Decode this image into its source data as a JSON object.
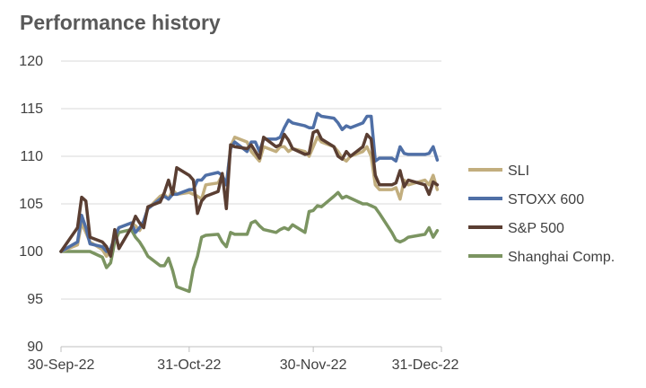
{
  "chart_data": {
    "type": "line",
    "title": "Performance history",
    "xlabel": "",
    "ylabel": "",
    "ylim": [
      90,
      120
    ],
    "yticks": [
      90,
      95,
      100,
      105,
      110,
      115,
      120
    ],
    "xlim": [
      "2022-09-30",
      "2022-12-31"
    ],
    "xticks": [
      "30-Sep-22",
      "31-Oct-22",
      "30-Nov-22",
      "31-Dec-22"
    ],
    "grid": "horizontal",
    "legend_position": "right",
    "series": [
      {
        "name": "SLI",
        "color": "#c2ae7e",
        "points": [
          [
            "2022-09-30",
            100.0
          ],
          [
            "2022-10-04",
            100.7
          ],
          [
            "2022-10-05",
            103.0
          ],
          [
            "2022-10-06",
            102.0
          ],
          [
            "2022-10-07",
            101.0
          ],
          [
            "2022-10-10",
            100.2
          ],
          [
            "2022-10-11",
            99.5
          ],
          [
            "2022-10-12",
            100.2
          ],
          [
            "2022-10-13",
            101.5
          ],
          [
            "2022-10-14",
            102.5
          ],
          [
            "2022-10-17",
            103.0
          ],
          [
            "2022-10-18",
            102.7
          ],
          [
            "2022-10-19",
            102.2
          ],
          [
            "2022-10-20",
            103.0
          ],
          [
            "2022-10-21",
            104.5
          ],
          [
            "2022-10-24",
            105.8
          ],
          [
            "2022-10-25",
            106.0
          ],
          [
            "2022-10-26",
            105.5
          ],
          [
            "2022-10-27",
            106.5
          ],
          [
            "2022-10-28",
            106.0
          ],
          [
            "2022-10-31",
            106.2
          ],
          [
            "2022-11-01",
            106.0
          ],
          [
            "2022-11-02",
            105.8
          ],
          [
            "2022-11-03",
            105.5
          ],
          [
            "2022-11-04",
            107.0
          ],
          [
            "2022-11-07",
            107.2
          ],
          [
            "2022-11-08",
            108.0
          ],
          [
            "2022-11-09",
            107.0
          ],
          [
            "2022-11-10",
            111.0
          ],
          [
            "2022-11-11",
            112.0
          ],
          [
            "2022-11-14",
            111.5
          ],
          [
            "2022-11-15",
            110.5
          ],
          [
            "2022-11-16",
            110.0
          ],
          [
            "2022-11-17",
            109.5
          ],
          [
            "2022-11-18",
            111.0
          ],
          [
            "2022-11-21",
            110.5
          ],
          [
            "2022-11-22",
            111.0
          ],
          [
            "2022-11-23",
            111.0
          ],
          [
            "2022-11-24",
            110.5
          ],
          [
            "2022-11-25",
            110.8
          ],
          [
            "2022-11-28",
            110.5
          ],
          [
            "2022-11-29",
            110.0
          ],
          [
            "2022-11-30",
            111.0
          ],
          [
            "2022-12-01",
            112.0
          ],
          [
            "2022-12-02",
            111.5
          ],
          [
            "2022-12-05",
            111.0
          ],
          [
            "2022-12-06",
            110.5
          ],
          [
            "2022-12-07",
            109.8
          ],
          [
            "2022-12-08",
            109.5
          ],
          [
            "2022-12-09",
            110.0
          ],
          [
            "2022-12-12",
            110.5
          ],
          [
            "2022-12-13",
            111.0
          ],
          [
            "2022-12-14",
            110.0
          ],
          [
            "2022-12-15",
            107.0
          ],
          [
            "2022-12-16",
            106.5
          ],
          [
            "2022-12-19",
            106.5
          ],
          [
            "2022-12-20",
            106.7
          ],
          [
            "2022-12-21",
            105.5
          ],
          [
            "2022-12-22",
            107.5
          ],
          [
            "2022-12-23",
            107.0
          ],
          [
            "2022-12-27",
            107.5
          ],
          [
            "2022-12-28",
            107.0
          ],
          [
            "2022-12-29",
            108.0
          ],
          [
            "2022-12-30",
            106.5
          ]
        ]
      },
      {
        "name": "STOXX 600",
        "color": "#4f6fa6",
        "points": [
          [
            "2022-09-30",
            100.0
          ],
          [
            "2022-10-04",
            101.0
          ],
          [
            "2022-10-05",
            103.8
          ],
          [
            "2022-10-06",
            102.5
          ],
          [
            "2022-10-07",
            100.8
          ],
          [
            "2022-10-10",
            100.5
          ],
          [
            "2022-10-11",
            100.0
          ],
          [
            "2022-10-12",
            100.3
          ],
          [
            "2022-10-13",
            101.5
          ],
          [
            "2022-10-14",
            102.5
          ],
          [
            "2022-10-17",
            103.0
          ],
          [
            "2022-10-18",
            102.0
          ],
          [
            "2022-10-19",
            102.5
          ],
          [
            "2022-10-20",
            103.2
          ],
          [
            "2022-10-21",
            104.5
          ],
          [
            "2022-10-24",
            105.5
          ],
          [
            "2022-10-25",
            105.8
          ],
          [
            "2022-10-26",
            105.5
          ],
          [
            "2022-10-27",
            106.0
          ],
          [
            "2022-10-28",
            106.0
          ],
          [
            "2022-10-31",
            106.5
          ],
          [
            "2022-11-01",
            106.5
          ],
          [
            "2022-11-02",
            107.5
          ],
          [
            "2022-11-03",
            107.5
          ],
          [
            "2022-11-04",
            108.0
          ],
          [
            "2022-11-07",
            108.3
          ],
          [
            "2022-11-08",
            108.0
          ],
          [
            "2022-11-09",
            107.0
          ],
          [
            "2022-11-10",
            110.8
          ],
          [
            "2022-11-11",
            111.5
          ],
          [
            "2022-11-14",
            110.5
          ],
          [
            "2022-11-15",
            111.5
          ],
          [
            "2022-11-16",
            111.5
          ],
          [
            "2022-11-17",
            110.5
          ],
          [
            "2022-11-18",
            111.8
          ],
          [
            "2022-11-21",
            111.8
          ],
          [
            "2022-11-22",
            112.0
          ],
          [
            "2022-11-23",
            113.0
          ],
          [
            "2022-11-24",
            113.8
          ],
          [
            "2022-11-25",
            113.5
          ],
          [
            "2022-11-28",
            113.2
          ],
          [
            "2022-11-29",
            113.0
          ],
          [
            "2022-11-30",
            113.0
          ],
          [
            "2022-12-01",
            114.5
          ],
          [
            "2022-12-02",
            114.2
          ],
          [
            "2022-12-05",
            114.0
          ],
          [
            "2022-12-06",
            113.5
          ],
          [
            "2022-12-07",
            112.8
          ],
          [
            "2022-12-08",
            113.2
          ],
          [
            "2022-12-09",
            113.0
          ],
          [
            "2022-12-12",
            113.5
          ],
          [
            "2022-12-13",
            114.2
          ],
          [
            "2022-12-14",
            114.2
          ],
          [
            "2022-12-15",
            109.5
          ],
          [
            "2022-12-16",
            109.8
          ],
          [
            "2022-12-19",
            109.8
          ],
          [
            "2022-12-20",
            109.5
          ],
          [
            "2022-12-21",
            111.0
          ],
          [
            "2022-12-22",
            110.3
          ],
          [
            "2022-12-23",
            110.2
          ],
          [
            "2022-12-27",
            110.2
          ],
          [
            "2022-12-28",
            110.3
          ],
          [
            "2022-12-29",
            111.0
          ],
          [
            "2022-12-30",
            109.6
          ]
        ]
      },
      {
        "name": "S&P 500",
        "color": "#5a3e32",
        "points": [
          [
            "2022-09-30",
            100.0
          ],
          [
            "2022-10-04",
            102.5
          ],
          [
            "2022-10-05",
            105.7
          ],
          [
            "2022-10-06",
            105.3
          ],
          [
            "2022-10-07",
            101.5
          ],
          [
            "2022-10-10",
            101.0
          ],
          [
            "2022-10-11",
            100.5
          ],
          [
            "2022-10-12",
            99.5
          ],
          [
            "2022-10-13",
            102.3
          ],
          [
            "2022-10-14",
            100.3
          ],
          [
            "2022-10-17",
            102.5
          ],
          [
            "2022-10-18",
            103.7
          ],
          [
            "2022-10-19",
            103.0
          ],
          [
            "2022-10-20",
            102.5
          ],
          [
            "2022-10-21",
            104.7
          ],
          [
            "2022-10-24",
            105.2
          ],
          [
            "2022-10-25",
            106.2
          ],
          [
            "2022-10-26",
            107.5
          ],
          [
            "2022-10-27",
            106.0
          ],
          [
            "2022-10-28",
            108.8
          ],
          [
            "2022-10-31",
            108.0
          ],
          [
            "2022-11-01",
            107.5
          ],
          [
            "2022-11-02",
            104.0
          ],
          [
            "2022-11-03",
            105.3
          ],
          [
            "2022-11-04",
            105.8
          ],
          [
            "2022-11-07",
            106.3
          ],
          [
            "2022-11-08",
            108.2
          ],
          [
            "2022-11-09",
            104.5
          ],
          [
            "2022-11-10",
            111.2
          ],
          [
            "2022-11-11",
            111.0
          ],
          [
            "2022-11-14",
            110.8
          ],
          [
            "2022-11-15",
            111.2
          ],
          [
            "2022-11-16",
            110.5
          ],
          [
            "2022-11-17",
            109.8
          ],
          [
            "2022-11-18",
            112.0
          ],
          [
            "2022-11-21",
            111.0
          ],
          [
            "2022-11-22",
            111.2
          ],
          [
            "2022-11-23",
            112.3
          ],
          [
            "2022-11-24",
            111.7
          ],
          [
            "2022-11-25",
            110.8
          ],
          [
            "2022-11-28",
            110.2
          ],
          [
            "2022-11-29",
            110.3
          ],
          [
            "2022-11-30",
            112.5
          ],
          [
            "2022-12-01",
            112.7
          ],
          [
            "2022-12-02",
            111.8
          ],
          [
            "2022-12-05",
            111.0
          ],
          [
            "2022-12-06",
            110.0
          ],
          [
            "2022-12-07",
            109.7
          ],
          [
            "2022-12-08",
            110.5
          ],
          [
            "2022-12-09",
            110.0
          ],
          [
            "2022-12-12",
            111.0
          ],
          [
            "2022-12-13",
            112.3
          ],
          [
            "2022-12-14",
            111.8
          ],
          [
            "2022-12-15",
            108.0
          ],
          [
            "2022-12-16",
            107.0
          ],
          [
            "2022-12-19",
            107.0
          ],
          [
            "2022-12-20",
            107.2
          ],
          [
            "2022-12-21",
            108.5
          ],
          [
            "2022-12-22",
            106.8
          ],
          [
            "2022-12-23",
            107.5
          ],
          [
            "2022-12-27",
            107.0
          ],
          [
            "2022-12-28",
            106.0
          ],
          [
            "2022-12-29",
            107.3
          ],
          [
            "2022-12-30",
            107.0
          ]
        ]
      },
      {
        "name": "Shanghai Comp.",
        "color": "#7b9461",
        "points": [
          [
            "2022-09-30",
            100.0
          ],
          [
            "2022-10-04",
            100.0
          ],
          [
            "2022-10-05",
            100.0
          ],
          [
            "2022-10-06",
            100.0
          ],
          [
            "2022-10-07",
            100.0
          ],
          [
            "2022-10-10",
            99.4
          ],
          [
            "2022-10-11",
            98.3
          ],
          [
            "2022-10-12",
            98.8
          ],
          [
            "2022-10-13",
            101.0
          ],
          [
            "2022-10-14",
            102.0
          ],
          [
            "2022-10-17",
            102.3
          ],
          [
            "2022-10-18",
            101.5
          ],
          [
            "2022-10-19",
            101.0
          ],
          [
            "2022-10-20",
            100.3
          ],
          [
            "2022-10-21",
            99.5
          ],
          [
            "2022-10-24",
            98.5
          ],
          [
            "2022-10-25",
            98.5
          ],
          [
            "2022-10-26",
            99.3
          ],
          [
            "2022-10-27",
            98.0
          ],
          [
            "2022-10-28",
            96.3
          ],
          [
            "2022-10-31",
            95.8
          ],
          [
            "2022-11-01",
            98.2
          ],
          [
            "2022-11-02",
            99.5
          ],
          [
            "2022-11-03",
            101.5
          ],
          [
            "2022-11-04",
            101.7
          ],
          [
            "2022-11-07",
            101.8
          ],
          [
            "2022-11-08",
            101.0
          ],
          [
            "2022-11-09",
            100.5
          ],
          [
            "2022-11-10",
            102.0
          ],
          [
            "2022-11-11",
            101.8
          ],
          [
            "2022-11-14",
            101.8
          ],
          [
            "2022-11-15",
            103.0
          ],
          [
            "2022-11-16",
            103.2
          ],
          [
            "2022-11-17",
            102.7
          ],
          [
            "2022-11-18",
            102.3
          ],
          [
            "2022-11-21",
            102.0
          ],
          [
            "2022-11-22",
            102.3
          ],
          [
            "2022-11-23",
            102.5
          ],
          [
            "2022-11-24",
            102.3
          ],
          [
            "2022-11-25",
            102.8
          ],
          [
            "2022-11-28",
            102.0
          ],
          [
            "2022-11-29",
            104.2
          ],
          [
            "2022-11-30",
            104.3
          ],
          [
            "2022-12-01",
            104.8
          ],
          [
            "2022-12-02",
            104.7
          ],
          [
            "2022-12-05",
            105.8
          ],
          [
            "2022-12-06",
            106.2
          ],
          [
            "2022-12-07",
            105.6
          ],
          [
            "2022-12-08",
            105.8
          ],
          [
            "2022-12-09",
            105.6
          ],
          [
            "2022-12-12",
            105.0
          ],
          [
            "2022-12-13",
            105.0
          ],
          [
            "2022-12-14",
            104.8
          ],
          [
            "2022-12-15",
            104.6
          ],
          [
            "2022-12-16",
            104.0
          ],
          [
            "2022-12-19",
            102.0
          ],
          [
            "2022-12-20",
            101.2
          ],
          [
            "2022-12-21",
            101.0
          ],
          [
            "2022-12-22",
            101.2
          ],
          [
            "2022-12-23",
            101.5
          ],
          [
            "2022-12-27",
            101.8
          ],
          [
            "2022-12-28",
            102.5
          ],
          [
            "2022-12-29",
            101.5
          ],
          [
            "2022-12-30",
            102.2
          ]
        ]
      }
    ]
  }
}
